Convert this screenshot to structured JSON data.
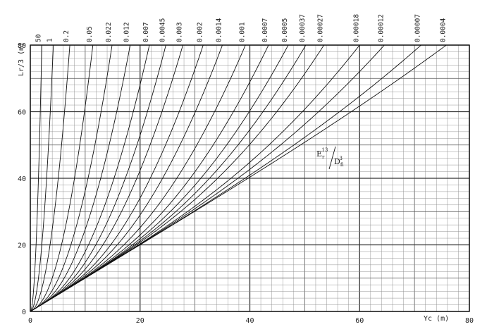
{
  "chart_data": {
    "type": "line",
    "title": "",
    "xlabel": "Yc (m)",
    "ylabel": "Lr/3 (m)",
    "xlim": [
      0,
      80
    ],
    "ylim": [
      0,
      80
    ],
    "x_ticks": [
      0,
      20,
      40,
      60,
      80
    ],
    "y_ticks": [
      0,
      20,
      40,
      60,
      80
    ],
    "grid": true,
    "minor_grid_step": 2,
    "annotation": {
      "numerator_base": "E",
      "numerator_sub": "r",
      "numerator_sup": "13",
      "denominator_base": "D",
      "denominator_sub": "fi",
      "denominator_sup": "3"
    },
    "series": [
      {
        "label": "50",
        "x_at_top": 2.1
      },
      {
        "label": "1",
        "x_at_top": 4.2
      },
      {
        "label": "0.2",
        "x_at_top": 7.2
      },
      {
        "label": "0.05",
        "x_at_top": 11.4
      },
      {
        "label": "0.022",
        "x_at_top": 14.9
      },
      {
        "label": "0.012",
        "x_at_top": 18.2
      },
      {
        "label": "0.007",
        "x_at_top": 21.7
      },
      {
        "label": "0.0045",
        "x_at_top": 24.7
      },
      {
        "label": "0.003",
        "x_at_top": 27.8
      },
      {
        "label": "0.002",
        "x_at_top": 31.5
      },
      {
        "label": "0.0014",
        "x_at_top": 35.0
      },
      {
        "label": "0.001",
        "x_at_top": 39.2
      },
      {
        "label": "0.0007",
        "x_at_top": 43.4
      },
      {
        "label": "0.0005",
        "x_at_top": 47.0
      },
      {
        "label": "0.00037",
        "x_at_top": 50.2
      },
      {
        "label": "0.00027",
        "x_at_top": 53.5
      },
      {
        "label": "0.00018",
        "x_at_top": 60.0
      },
      {
        "label": "0.00012",
        "x_at_top": 64.5
      },
      {
        "label": "0.00007",
        "x_at_top": 71.2
      },
      {
        "label": "0.0004",
        "x_at_top": 75.8
      }
    ]
  }
}
